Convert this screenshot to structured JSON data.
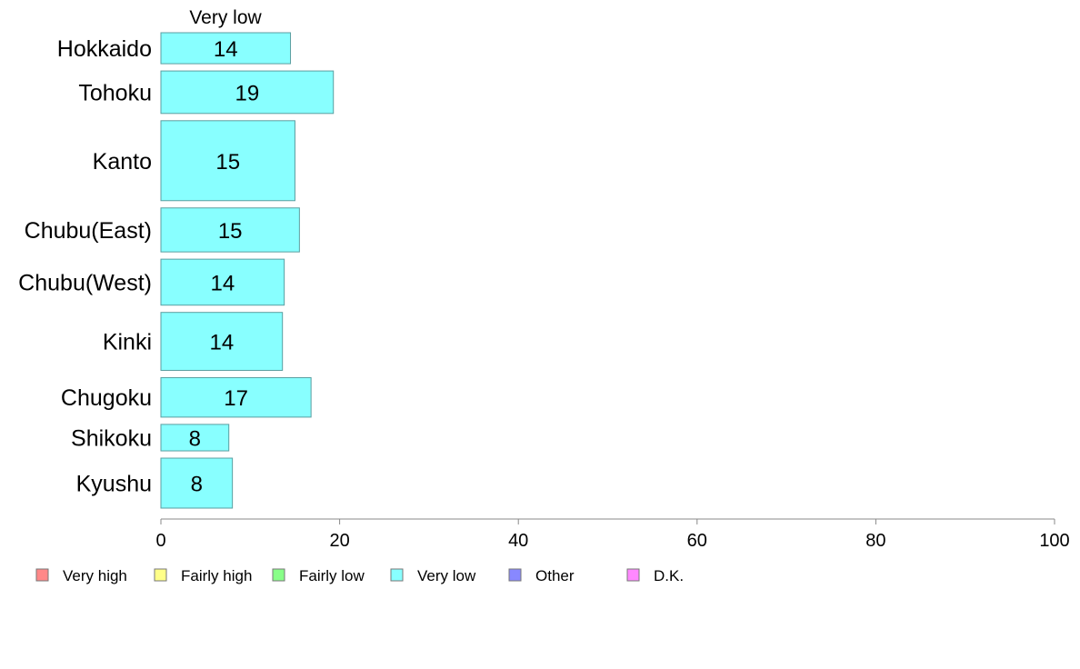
{
  "chart_data": {
    "type": "bar",
    "orientation": "horizontal",
    "series_title": "Very low",
    "categories": [
      "Hokkaido",
      "Tohoku",
      "Kanto",
      "Chubu(East)",
      "Chubu(West)",
      "Kinki",
      "Chugoku",
      "Shikoku",
      "Kyushu"
    ],
    "values": [
      14.5,
      19.3,
      15.0,
      15.5,
      13.8,
      13.6,
      16.8,
      7.6,
      8.0
    ],
    "value_labels": [
      "14",
      "19",
      "15",
      "15",
      "14",
      "14",
      "17",
      "8",
      "8"
    ],
    "relative_sample_size": [
      0.62,
      0.85,
      1.6,
      0.88,
      0.92,
      1.16,
      0.79,
      0.53,
      1.0
    ],
    "xlim": [
      0,
      100
    ],
    "xticks": [
      "0",
      "20",
      "40",
      "60",
      "80",
      "100"
    ],
    "bar_color": "#88ffff",
    "bar_edge_color": "#5a9ea0",
    "legend_position": "bottom",
    "legend": [
      {
        "label": "Very high",
        "color": "#ff8888"
      },
      {
        "label": "Fairly high",
        "color": "#ffff88"
      },
      {
        "label": "Fairly low",
        "color": "#88ff88"
      },
      {
        "label": "Very low",
        "color": "#88ffff"
      },
      {
        "label": "Other",
        "color": "#8888ff"
      },
      {
        "label": "D.K.",
        "color": "#ff88ff"
      }
    ]
  }
}
